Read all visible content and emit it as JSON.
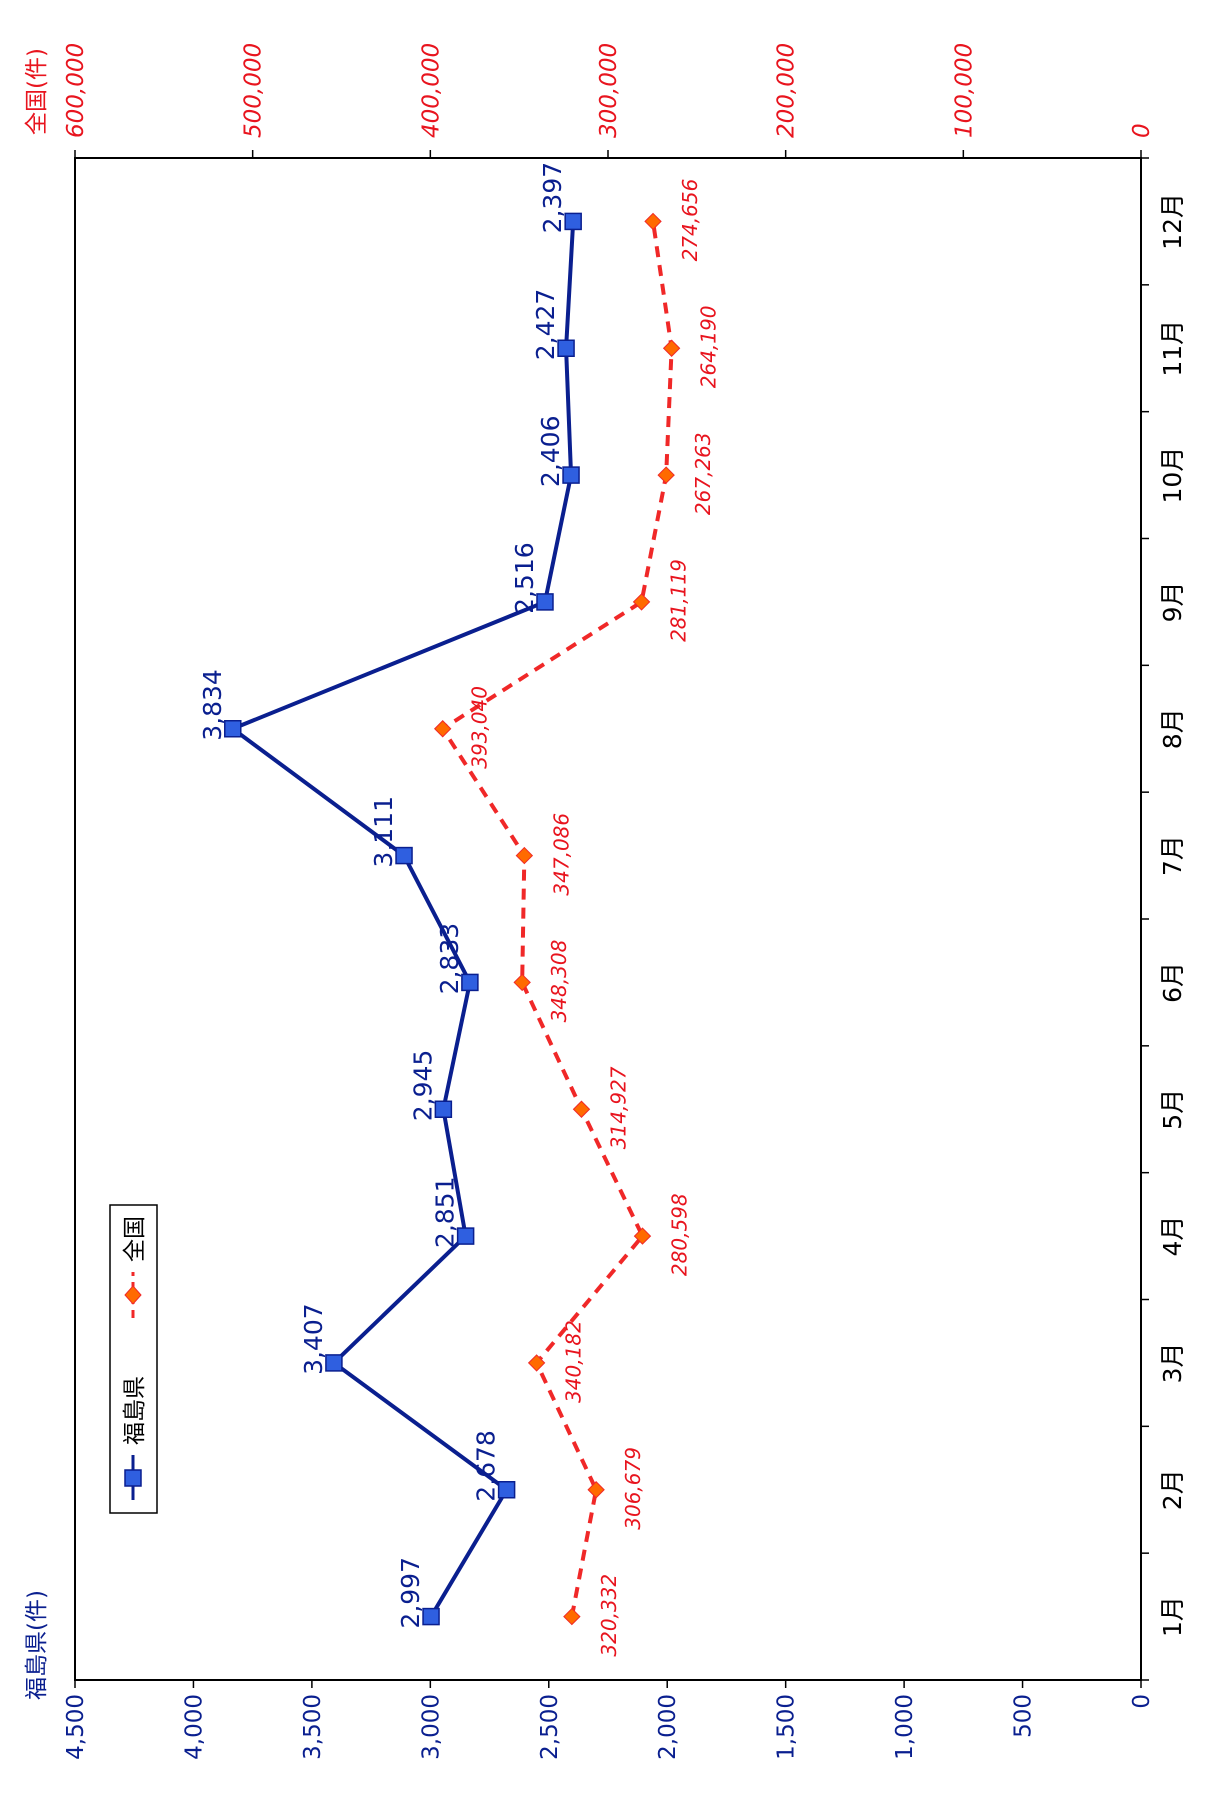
{
  "chart_data": {
    "type": "line",
    "orientation": "rotated-90-clockwise",
    "categories": [
      "1月",
      "2月",
      "3月",
      "4月",
      "5月",
      "6月",
      "7月",
      "8月",
      "9月",
      "10月",
      "11月",
      "12月"
    ],
    "left_axis": {
      "title": "福島県(件)",
      "ylim": [
        0,
        4500
      ],
      "ticks": [
        0,
        500,
        1000,
        1500,
        2000,
        2500,
        3000,
        3500,
        4000,
        4500
      ],
      "tick_labels": [
        "0",
        "500",
        "1,000",
        "1,500",
        "2,000",
        "2,500",
        "3,000",
        "3,500",
        "4,000",
        "4,500"
      ]
    },
    "right_axis": {
      "title": "全国(件)",
      "ylim": [
        0,
        600000
      ],
      "ticks": [
        0,
        100000,
        200000,
        300000,
        400000,
        500000,
        600000
      ],
      "tick_labels": [
        "0",
        "100,000",
        "200,000",
        "300,000",
        "400,000",
        "500,000",
        "600,000"
      ]
    },
    "series": [
      {
        "name": "福島県",
        "axis": "left",
        "color": "#0a1f8f",
        "marker_color": "#2f5fe0",
        "values": [
          2997,
          2678,
          3407,
          2851,
          2945,
          2833,
          3111,
          3834,
          2516,
          2406,
          2427,
          2397
        ],
        "labels": [
          "2,997",
          "2,678",
          "3,407",
          "2,851",
          "2,945",
          "2,833",
          "3,111",
          "3,834",
          "2,516",
          "2,406",
          "2,427",
          "2,397"
        ]
      },
      {
        "name": "全国",
        "axis": "right",
        "color": "#f02828",
        "marker_color": "#ff6a00",
        "values": [
          320332,
          306679,
          340182,
          280598,
          314927,
          348308,
          347086,
          393040,
          281119,
          267263,
          264190,
          274656
        ],
        "labels": [
          "320,332",
          "306,679",
          "340,182",
          "280,598",
          "314,927",
          "348,308",
          "347,086",
          "393,040",
          "281,119",
          "267,263",
          "264,190",
          "274,656"
        ]
      }
    ],
    "grid": false,
    "legend": "top-left"
  }
}
